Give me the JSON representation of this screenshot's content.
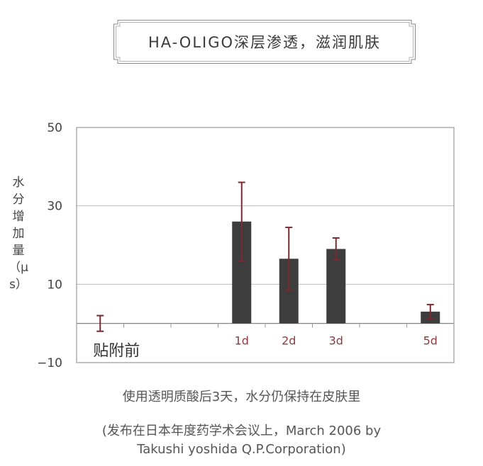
{
  "title": "HA-OLIGO深层渗透，滋润肌肤",
  "caption": "使用透明质酸后3天，水分仍保持在皮肤里",
  "source_line1": "(发布在日本年度药学术会议上，March 2006 by",
  "source_line2": "Takushi yoshida Q.P.Corporation)",
  "colors": {
    "bar": "#3d3d3d",
    "error_bar": "#7a2a30",
    "tick_label_red": "#8a3a3f",
    "grid": "#bbbbbb",
    "frame": "#999999"
  },
  "chart_data": {
    "type": "bar",
    "title": "",
    "xlabel": "",
    "ylabel": "水分增加量（μs）",
    "ylim": [
      -10,
      50
    ],
    "yticks": [
      -10,
      10,
      30,
      50
    ],
    "grid": true,
    "categories": [
      "贴附前",
      "",
      "",
      "1d",
      "2d",
      "3d",
      "",
      "5d"
    ],
    "values": [
      0,
      null,
      null,
      26,
      16.5,
      19,
      null,
      3
    ],
    "error": [
      2,
      null,
      null,
      10,
      8,
      2.8,
      null,
      1.8
    ]
  }
}
